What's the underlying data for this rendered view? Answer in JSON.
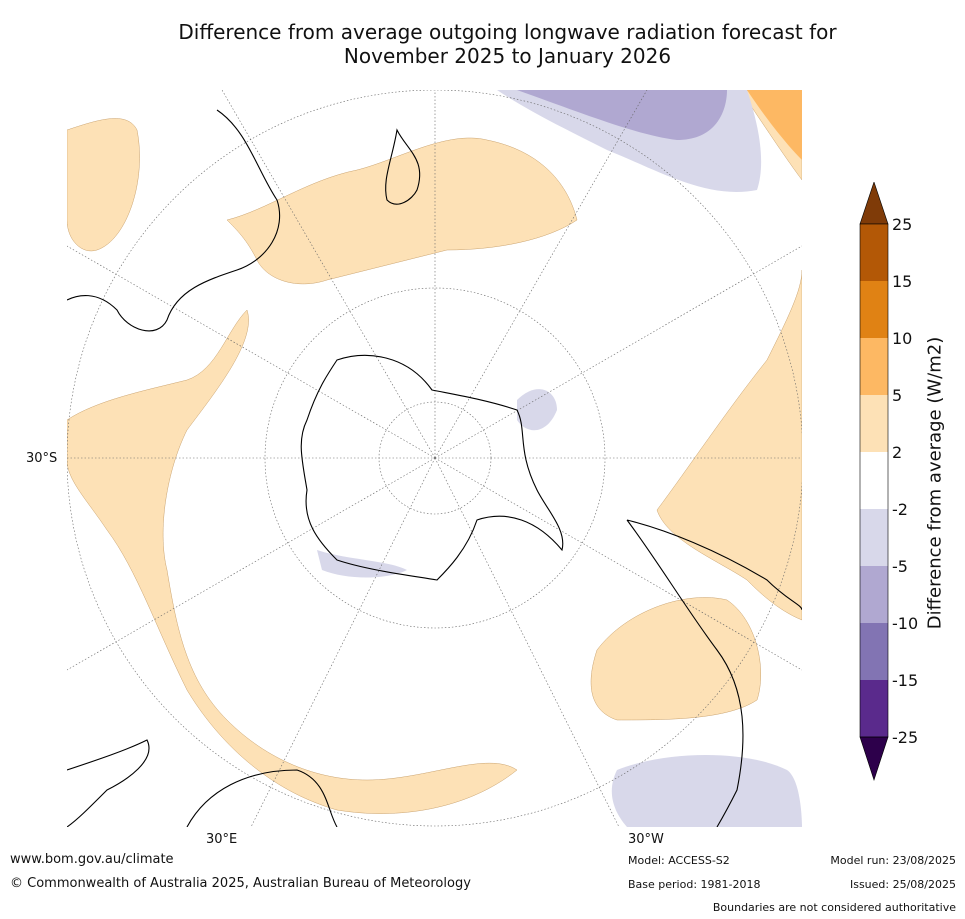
{
  "title": {
    "line1": "Difference from average outgoing longwave radiation forecast for",
    "line2": "November 2025 to January 2026"
  },
  "map": {
    "projection": "south-polar-stereographic",
    "latitude_label": "30°S",
    "longitude_labels": [
      "30°E",
      "30°W"
    ],
    "colors": {
      "strong_negative": "#5a2a8c",
      "negative_15": "#8274b3",
      "negative_10": "#b0a8d1",
      "negative_5": "#d8d8ea",
      "neutral": "#ffffff",
      "positive_2": "#fde1b6",
      "positive_5": "#fdb863",
      "positive_10": "#e08214",
      "positive_15": "#b35806",
      "positive_25": "#7f3b08"
    }
  },
  "colorbar": {
    "label": "Difference from average (W/m2)",
    "ticks": [
      "25",
      "15",
      "10",
      "5",
      "2",
      "-2",
      "-5",
      "-10",
      "-15",
      "-25"
    ],
    "colors": [
      "#b35806",
      "#e08214",
      "#fdb863",
      "#fde1b6",
      "#ffffff",
      "#d8d8ea",
      "#b0a8d1",
      "#8274b3",
      "#5a2a8c"
    ],
    "extend_max_color": "#7f3b08",
    "extend_min_color": "#2d004b"
  },
  "footer": {
    "website": "www.bom.gov.au/climate",
    "copyright": "© Commonwealth of Australia 2025, Australian Bureau of Meteorology",
    "model": "Model: ACCESS-S2",
    "base_period": "Base period: 1981-2018",
    "model_run": "Model run: 23/08/2025",
    "issued": "Issued: 25/08/2025",
    "disclaimer": "Boundaries are not considered authoritative"
  }
}
